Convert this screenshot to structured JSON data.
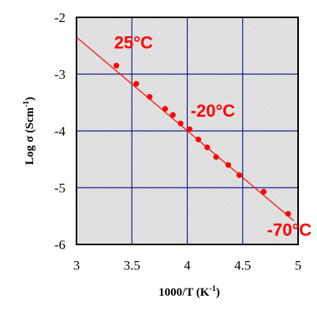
{
  "chart_data": {
    "type": "scatter",
    "title": "",
    "xlabel": "1000/T (K",
    "xlabel_sup": "-1",
    "xlabel_close": ")",
    "ylabel": "Log σ  (Scm",
    "ylabel_sup": "-1",
    "ylabel_close": ")",
    "xlim": [
      3,
      5
    ],
    "ylim": [
      -6,
      -2
    ],
    "xticks": [
      3,
      3.5,
      4,
      4.5,
      5
    ],
    "xtick_labels": [
      "3",
      "3.5",
      "4",
      "4.5",
      "5"
    ],
    "yticks": [
      -2,
      -3,
      -4,
      -5,
      -6
    ],
    "ytick_labels": [
      "-2",
      "-3",
      "-4",
      "-5",
      "-6"
    ],
    "grid": true,
    "series": [
      {
        "x": [
          3.36,
          3.54,
          3.66,
          3.8,
          3.87,
          3.94,
          4.02,
          4.1,
          4.18,
          4.26,
          4.37,
          4.47,
          4.69,
          4.91
        ],
        "y": [
          -2.85,
          -3.17,
          -3.4,
          -3.61,
          -3.72,
          -3.87,
          -3.97,
          -4.15,
          -4.29,
          -4.46,
          -4.6,
          -4.78,
          -5.07,
          -5.46
        ]
      }
    ],
    "fit_line": {
      "x": [
        3.0,
        4.96
      ],
      "y": [
        -2.35,
        -5.58
      ]
    },
    "annotations": [
      {
        "text": "25°C",
        "x": 3.34,
        "y": -2.55
      },
      {
        "text": "-20°C",
        "x": 4.03,
        "y": -3.75
      },
      {
        "text": "-70°C",
        "x": 4.72,
        "y": -5.85
      }
    ],
    "colors": {
      "marker": "#ff0000",
      "fit_line": "#ff0000",
      "annotation": "#ff0000",
      "grid": "#1a1a8c",
      "plot_background": "#e9e9e9",
      "frame": "#000000"
    }
  }
}
